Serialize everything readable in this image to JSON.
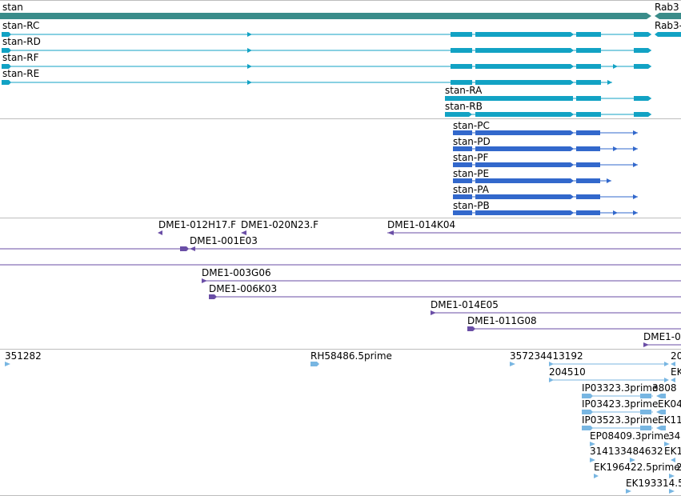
{
  "colors": {
    "gene": "#3a8c8a",
    "transcript": "#12a2c4",
    "protein": "#3268cc",
    "insertion": "#6a4ea6",
    "est": "#78b6e2",
    "divider": "#bdbdbd"
  },
  "genes": [
    {
      "label": "stan",
      "icon": "gene-icon"
    },
    {
      "label": "Rab3",
      "icon": "gene-icon"
    }
  ],
  "transcripts": [
    {
      "label": "stan-RC"
    },
    {
      "label": "Rab3-"
    },
    {
      "label": "stan-RD"
    },
    {
      "label": "stan-RF"
    },
    {
      "label": "stan-RE"
    },
    {
      "label": "stan-RA"
    },
    {
      "label": "stan-RB"
    }
  ],
  "proteins": [
    {
      "label": "stan-PC"
    },
    {
      "label": "stan-PD"
    },
    {
      "label": "stan-PF"
    },
    {
      "label": "stan-PE"
    },
    {
      "label": "stan-PA"
    },
    {
      "label": "stan-PB"
    }
  ],
  "insertions": [
    {
      "label": "DME1-012H17.F"
    },
    {
      "label": "DME1-020N23.F"
    },
    {
      "label": "DME1-014K04"
    },
    {
      "label": "DME1-001E03"
    },
    {
      "label": "DME1-003G06"
    },
    {
      "label": "DME1-006K03"
    },
    {
      "label": "DME1-014E05"
    },
    {
      "label": "DME1-011G08"
    },
    {
      "label": "DME1-0"
    }
  ],
  "ests": [
    {
      "label": "351282"
    },
    {
      "label": "RH58486.5prime"
    },
    {
      "label": "357234413192"
    },
    {
      "label": "20"
    },
    {
      "label": "204510"
    },
    {
      "label": "EK"
    },
    {
      "label": "IP03323.3prime"
    },
    {
      "label": "3808"
    },
    {
      "label": "IP03423.3prime"
    },
    {
      "label": "EK04"
    },
    {
      "label": "IP03523.3prime"
    },
    {
      "label": "EK11"
    },
    {
      "label": "EP08409.3prime"
    },
    {
      "label": "34"
    },
    {
      "label": "314133484632"
    },
    {
      "label": "EK1"
    },
    {
      "label": "EK196422.5prime"
    },
    {
      "label": "2"
    },
    {
      "label": "EK193314.5"
    }
  ]
}
